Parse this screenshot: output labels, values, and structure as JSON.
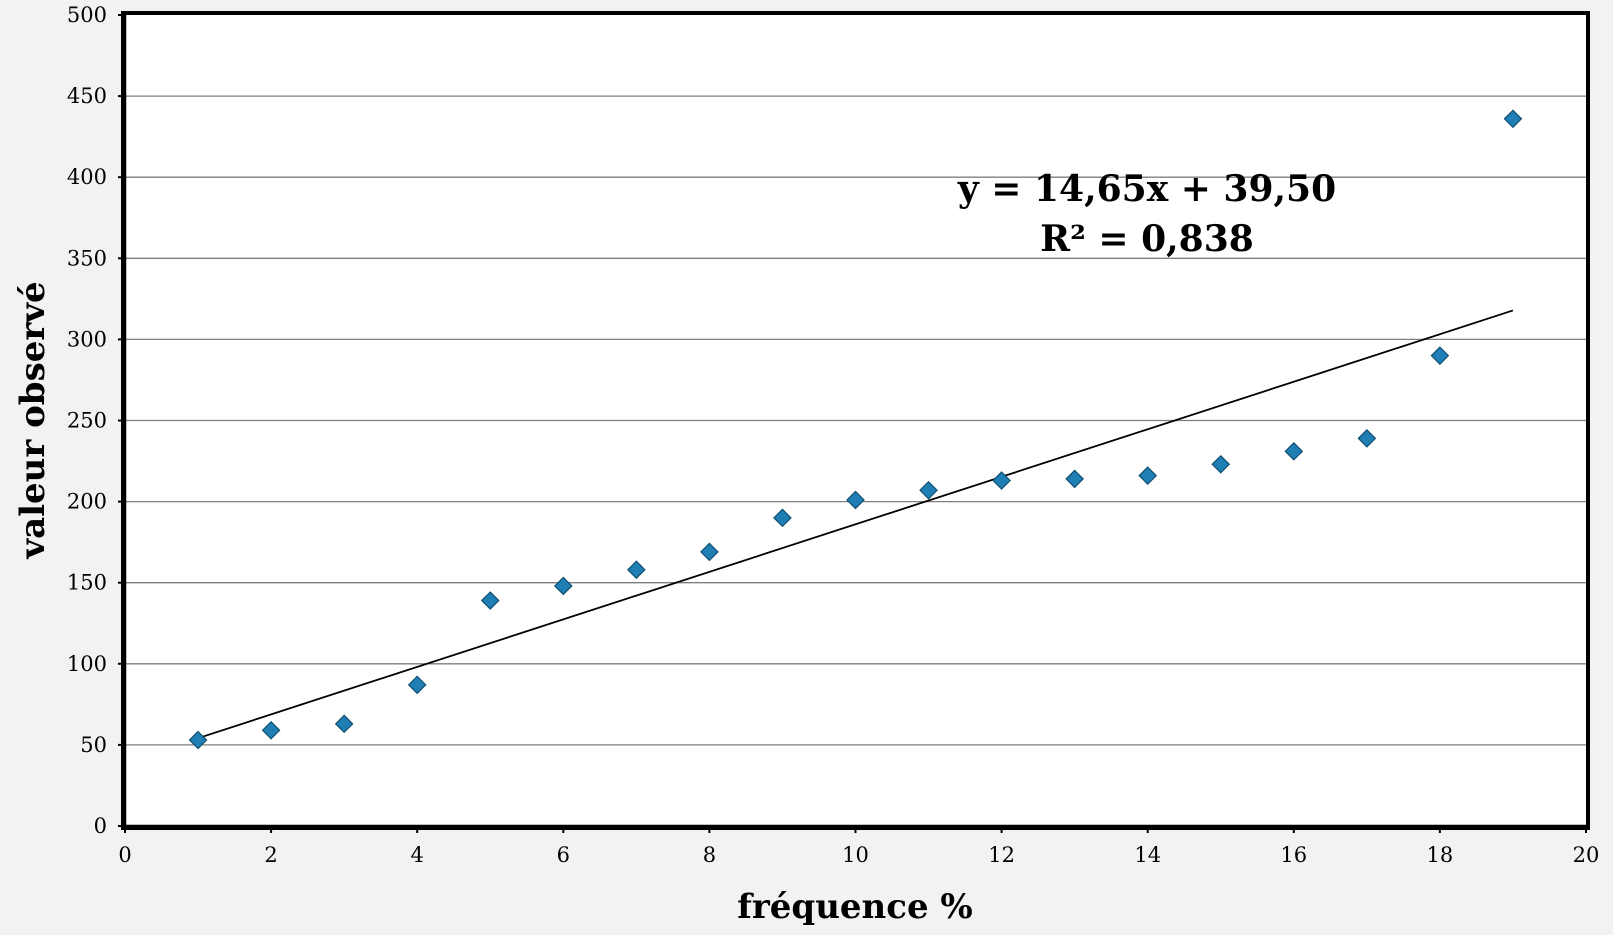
{
  "chart_data": {
    "type": "scatter",
    "xlabel": "fréquence %",
    "ylabel": "valeur observé",
    "xlim": [
      0,
      20
    ],
    "ylim": [
      0,
      500
    ],
    "xticks": [
      0,
      2,
      4,
      6,
      8,
      10,
      12,
      14,
      16,
      18,
      20
    ],
    "yticks": [
      0,
      50,
      100,
      150,
      200,
      250,
      300,
      350,
      400,
      450,
      500
    ],
    "grid": "horizontal",
    "series": [
      {
        "marker": "diamond",
        "color": "#1f7fb4",
        "x": [
          1,
          2,
          3,
          4,
          5,
          6,
          7,
          8,
          9,
          10,
          11,
          12,
          13,
          14,
          15,
          16,
          17,
          18,
          19
        ],
        "y": [
          53,
          59,
          63,
          87,
          139,
          148,
          158,
          169,
          190,
          201,
          207,
          213,
          214,
          216,
          223,
          231,
          239,
          290,
          436
        ]
      }
    ],
    "trendline": {
      "type": "linear",
      "slope": 14.65,
      "intercept": 39.5,
      "x_range": [
        1,
        19
      ],
      "equation_label": "y = 14,65x + 39,50",
      "r2_label": "R² = 0,838"
    }
  },
  "colors": {
    "background": "#f2f2f2",
    "plot_area": "#ffffff",
    "marker_fill": "#1f7fb4",
    "marker_stroke": "#0f4e70",
    "gridline": "#7f7f7f",
    "axis": "#000000"
  }
}
